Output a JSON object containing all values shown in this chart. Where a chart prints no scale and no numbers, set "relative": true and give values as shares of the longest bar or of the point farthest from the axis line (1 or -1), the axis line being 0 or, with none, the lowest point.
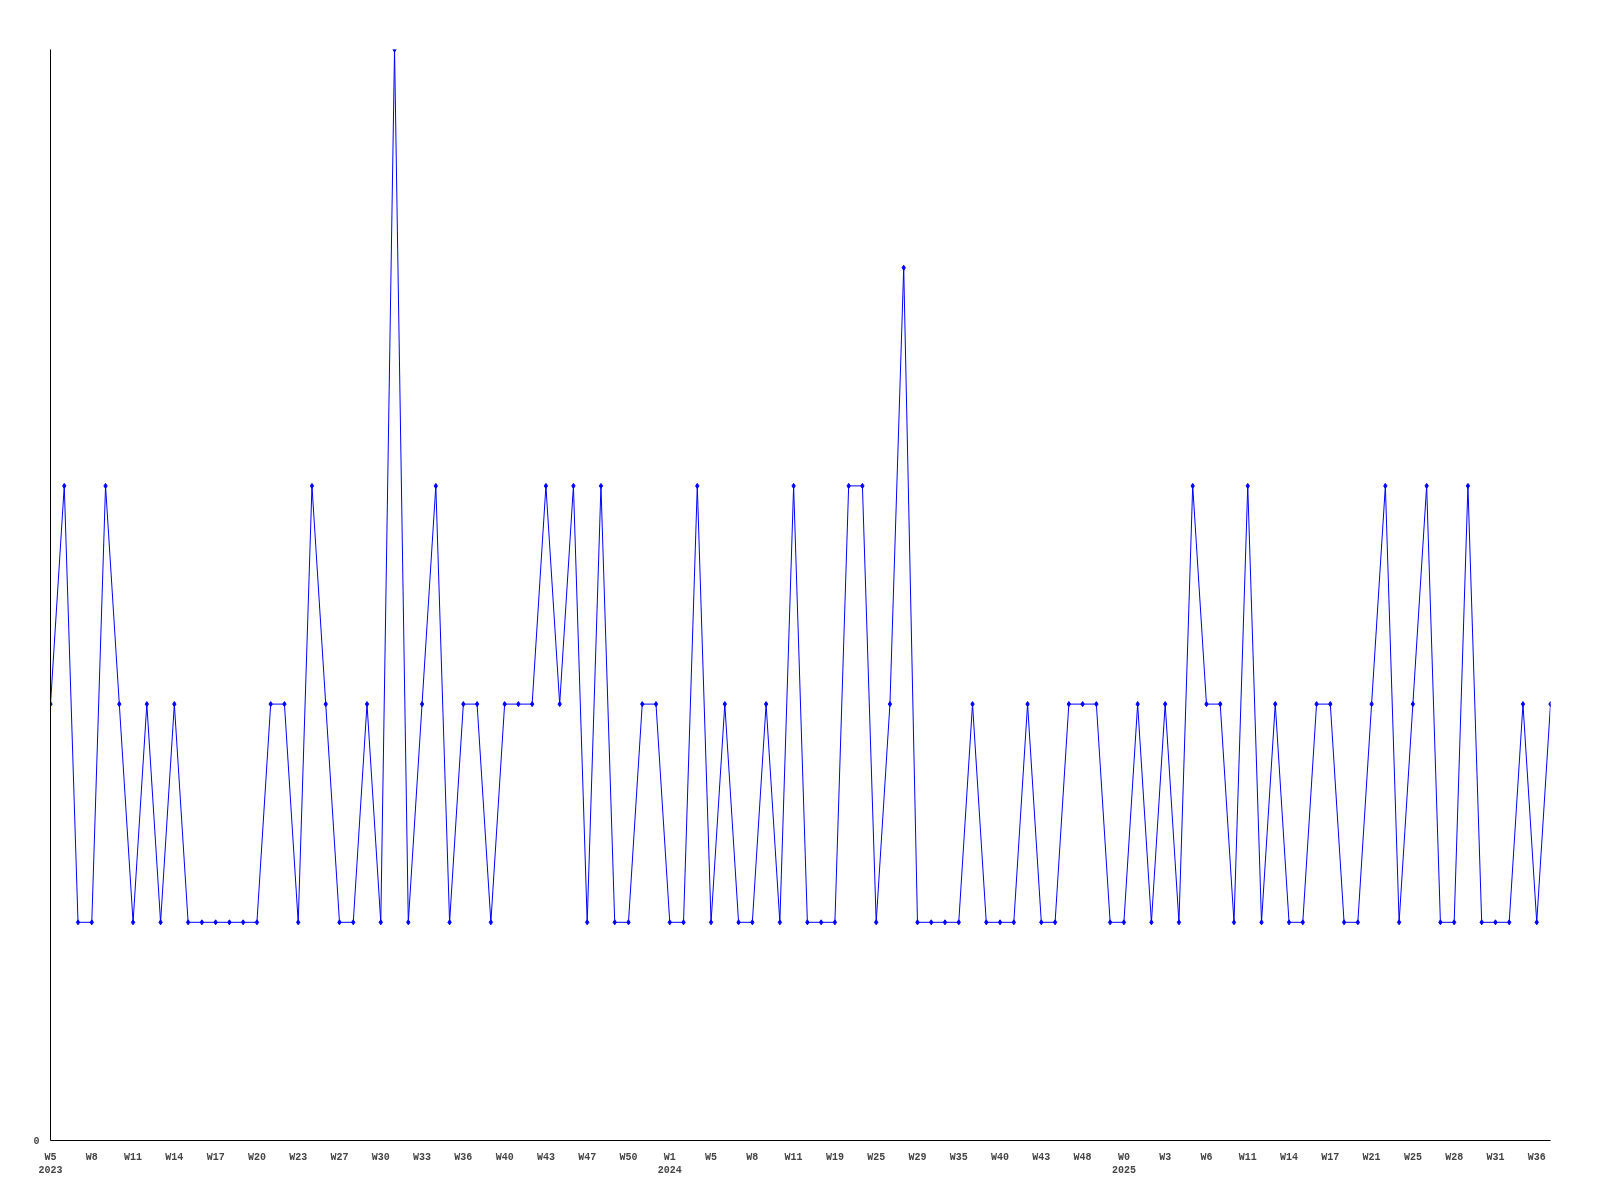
{
  "chart_data": {
    "type": "line",
    "relative": true,
    "annotations": [
      "0"
    ],
    "grid": false,
    "marker": "diamond",
    "line_style": "solid",
    "categories": [
      "W5\n2023",
      null,
      null,
      "W8",
      null,
      null,
      "W11",
      null,
      null,
      "W14",
      null,
      null,
      "W17",
      null,
      null,
      "W20",
      null,
      null,
      "W23",
      null,
      null,
      "W27",
      null,
      null,
      "W30",
      null,
      null,
      "W33",
      null,
      null,
      "W36",
      null,
      null,
      "W40",
      null,
      null,
      "W43",
      null,
      null,
      "W47",
      null,
      null,
      "W50",
      null,
      null,
      "W1\n2024",
      null,
      null,
      "W5",
      null,
      null,
      "W8",
      null,
      null,
      "W11",
      null,
      null,
      "W19",
      null,
      null,
      "W25",
      null,
      null,
      "W29",
      null,
      null,
      "W35",
      null,
      null,
      "W40",
      null,
      null,
      "W43",
      null,
      null,
      "W48",
      null,
      null,
      "W0\n2025",
      null,
      null,
      "W3",
      null,
      null,
      "W6",
      null,
      null,
      "W11",
      null,
      null,
      "W14",
      null,
      null,
      "W17",
      null,
      null,
      "W21",
      null,
      null,
      "W25",
      null,
      null,
      "W28",
      null,
      null,
      "W31",
      null,
      null,
      "W36",
      null
    ],
    "series": [
      {
        "color": "#0000ff",
        "values": [
          0.4,
          0.6,
          0.2,
          0.2,
          0.6,
          0.4,
          0.2,
          0.4,
          0.2,
          0.4,
          0.2,
          0.2,
          0.2,
          0.2,
          0.2,
          0.2,
          0.4,
          0.4,
          0.2,
          0.6,
          0.4,
          0.2,
          0.2,
          0.4,
          0.2,
          1,
          0.2,
          0.4,
          0.6,
          0.2,
          0.4,
          0.4,
          0.2,
          0.4,
          0.4,
          0.4,
          0.6,
          0.4,
          0.6,
          0.2,
          0.6,
          0.2,
          0.2,
          0.4,
          0.4,
          0.2,
          0.2,
          0.6,
          0.2,
          0.4,
          0.2,
          0.2,
          0.4,
          0.2,
          0.6,
          0.2,
          0.2,
          0.2,
          0.6,
          0.6,
          0.2,
          0.4,
          0.8,
          0.2,
          0.2,
          0.2,
          0.2,
          0.4,
          0.2,
          0.2,
          0.2,
          0.4,
          0.2,
          0.2,
          0.4,
          0.4,
          0.4,
          0.2,
          0.2,
          0.4,
          0.2,
          0.4,
          0.2,
          0.6,
          0.4,
          0.4,
          0.2,
          0.6,
          0.2,
          0.4,
          0.2,
          0.2,
          0.4,
          0.4,
          0.2,
          0.2,
          0.4,
          0.6,
          0.2,
          0.4,
          0.6,
          0.2,
          0.2,
          0.6,
          0.2,
          0.2,
          0.2,
          0.4,
          0.2,
          0.4
        ]
      }
    ]
  }
}
